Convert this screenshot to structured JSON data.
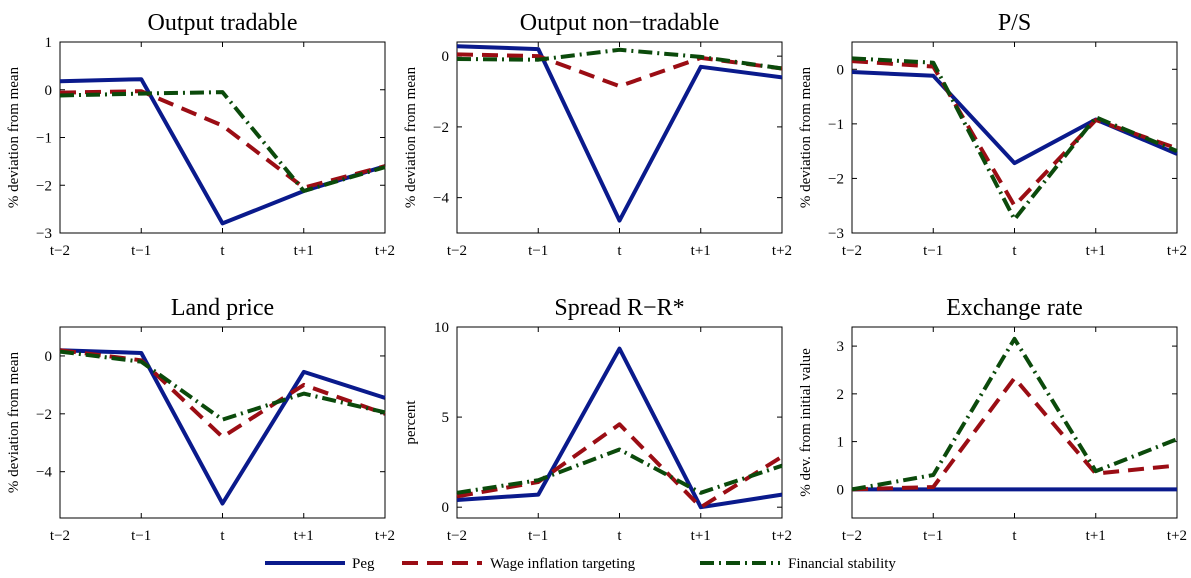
{
  "chart_data": [
    {
      "type": "line",
      "title": "Output tradable",
      "ylabel": "% deviation from mean",
      "categories": [
        "t−2",
        "t−1",
        "t",
        "t+1",
        "t+2"
      ],
      "ylim": [
        -3,
        1
      ],
      "yticks": [
        1,
        0,
        -1,
        -2,
        -3
      ],
      "series": [
        {
          "name": "Peg",
          "values": [
            0.18,
            0.22,
            -2.8,
            -2.12,
            -1.6
          ]
        },
        {
          "name": "Wage inflation targeting",
          "values": [
            -0.06,
            -0.03,
            -0.75,
            -2.05,
            -1.6
          ]
        },
        {
          "name": "Financial stability",
          "values": [
            -0.12,
            -0.08,
            -0.05,
            -2.12,
            -1.62
          ]
        }
      ]
    },
    {
      "type": "line",
      "title": "Output non−tradable",
      "ylabel": "% deviation from mean",
      "categories": [
        "t−2",
        "t−1",
        "t",
        "t+1",
        "t+2"
      ],
      "ylim": [
        -5,
        0.4
      ],
      "yticks": [
        0,
        -2,
        -4
      ],
      "series": [
        {
          "name": "Peg",
          "values": [
            0.28,
            0.2,
            -4.65,
            -0.3,
            -0.6
          ]
        },
        {
          "name": "Wage inflation targeting",
          "values": [
            0.05,
            0.0,
            -0.85,
            -0.05,
            -0.35
          ]
        },
        {
          "name": "Financial stability",
          "values": [
            -0.08,
            -0.1,
            0.18,
            -0.02,
            -0.35
          ]
        }
      ]
    },
    {
      "type": "line",
      "title": "P/S",
      "ylabel": "% deviation from mean",
      "categories": [
        "t−2",
        "t−1",
        "t",
        "t+1",
        "t+2"
      ],
      "ylim": [
        -3,
        0.5
      ],
      "yticks": [
        0,
        -1,
        -2,
        -3
      ],
      "series": [
        {
          "name": "Peg",
          "values": [
            -0.05,
            -0.12,
            -1.72,
            -0.92,
            -1.55
          ]
        },
        {
          "name": "Wage inflation targeting",
          "values": [
            0.15,
            0.05,
            -2.5,
            -0.93,
            -1.45
          ]
        },
        {
          "name": "Financial stability",
          "values": [
            0.2,
            0.12,
            -2.75,
            -0.88,
            -1.5
          ]
        }
      ]
    },
    {
      "type": "line",
      "title": "Land price",
      "ylabel": "% deviation from mean",
      "categories": [
        "t−2",
        "t−1",
        "t",
        "t+1",
        "t+2"
      ],
      "ylim": [
        -5.6,
        1
      ],
      "yticks": [
        0,
        -2,
        -4
      ],
      "series": [
        {
          "name": "Peg",
          "values": [
            0.2,
            0.1,
            -5.1,
            -0.55,
            -1.45
          ]
        },
        {
          "name": "Wage inflation targeting",
          "values": [
            0.2,
            -0.15,
            -2.8,
            -1.0,
            -2.0
          ]
        },
        {
          "name": "Financial stability",
          "values": [
            0.15,
            -0.2,
            -2.2,
            -1.3,
            -1.95
          ]
        }
      ]
    },
    {
      "type": "line",
      "title": "Spread R−R*",
      "ylabel": "percent",
      "categories": [
        "t−2",
        "t−1",
        "t",
        "t+1",
        "t+2"
      ],
      "ylim": [
        -0.6,
        10
      ],
      "yticks": [
        10,
        5,
        0
      ],
      "series": [
        {
          "name": "Peg",
          "values": [
            0.4,
            0.7,
            8.8,
            0.0,
            0.7
          ]
        },
        {
          "name": "Wage inflation targeting",
          "values": [
            0.6,
            1.4,
            4.6,
            0.0,
            2.8
          ]
        },
        {
          "name": "Financial stability",
          "values": [
            0.8,
            1.5,
            3.2,
            0.8,
            2.3
          ]
        }
      ]
    },
    {
      "type": "line",
      "title": "Exchange rate",
      "ylabel": "% dev. from initial value",
      "categories": [
        "t−2",
        "t−1",
        "t",
        "t+1",
        "t+2"
      ],
      "ylim": [
        -0.6,
        3.4
      ],
      "yticks": [
        3,
        2,
        1,
        0
      ],
      "series": [
        {
          "name": "Peg",
          "values": [
            0.0,
            0.0,
            0.0,
            0.0,
            0.0
          ]
        },
        {
          "name": "Wage inflation targeting",
          "values": [
            0.0,
            0.05,
            2.33,
            0.33,
            0.5
          ]
        },
        {
          "name": "Financial stability",
          "values": [
            0.0,
            0.3,
            3.15,
            0.38,
            1.05
          ]
        }
      ]
    }
  ],
  "legend": {
    "placement": "bottom",
    "entries": [
      {
        "label": "Peg",
        "color": "#0a1a8c",
        "dash": "solid"
      },
      {
        "label": "Wage inflation targeting",
        "color": "#9b0d14",
        "dash": "dashed"
      },
      {
        "label": "Financial stability",
        "color": "#0b4a0b",
        "dash": "dashdot"
      }
    ]
  },
  "style": {
    "series_colors": [
      "#0a1a8c",
      "#9b0d14",
      "#0b4a0b"
    ]
  }
}
